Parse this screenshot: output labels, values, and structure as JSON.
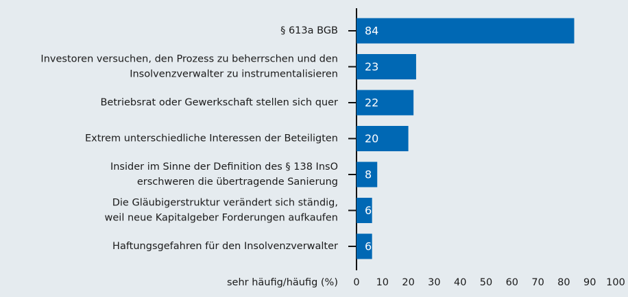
{
  "chart_data": {
    "type": "bar",
    "orientation": "horizontal",
    "categories": [
      [
        "§ 613a BGB"
      ],
      [
        "Investoren versuchen, den Prozess zu beherrschen und den",
        "Insolvenzverwalter zu instrumentalisieren"
      ],
      [
        "Betriebsrat oder Gewerkschaft stellen sich quer"
      ],
      [
        "Extrem unterschiedliche Interessen der Beteiligten"
      ],
      [
        "Insider im Sinne der Definition des § 138 InsO",
        "erschweren die übertragende Sanierung"
      ],
      [
        "Die Gläubigerstruktur verändert sich ständig,",
        "weil neue Kapitalgeber Forderungen aufkaufen"
      ],
      [
        "Haftungsgefahren für den Insolvenzverwalter"
      ]
    ],
    "values": [
      84,
      23,
      22,
      20,
      8,
      6,
      6
    ],
    "color": "#0068b4",
    "xlabel": "sehr häufig/häufig (%)",
    "xlim": [
      0,
      100
    ],
    "xticks": [
      0,
      10,
      20,
      30,
      40,
      50,
      60,
      70,
      80,
      90,
      100
    ],
    "grid": false
  }
}
